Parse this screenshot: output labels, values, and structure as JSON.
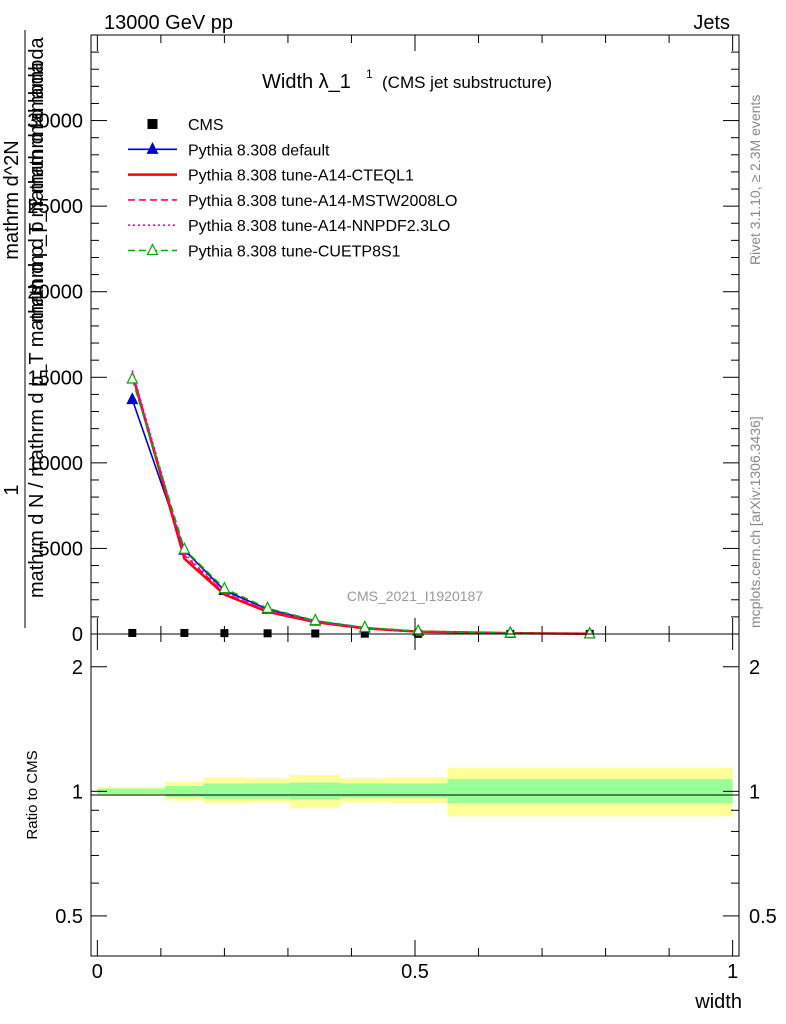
{
  "header": {
    "left": "13000 GeV pp",
    "right": "Jets"
  },
  "side_labels": {
    "rivet": "Rivet 3.1.10, ≥ 2.3M events",
    "mcplots": "mcplots.cern.ch [arXiv:1306.3436]"
  },
  "watermark": "CMS_2021_I1920187",
  "chart_data": [
    {
      "type": "line",
      "title": "Width λ_1",
      "title_sup": "1",
      "subtitle": "(CMS jet substructure)",
      "ylabel_numerator": "1",
      "ylabel_denominator": "mathrm d N / mathrm d p_T mathrm d p_T mathrm d lambda",
      "ylabel_top": "mathrm d^2N",
      "ylabel_top_frac": "mathrm d p_T mathrm d lambda",
      "xlabel": "width",
      "xlim": [
        -0.01,
        1.01
      ],
      "ylim": [
        0,
        35000
      ],
      "yticks": [
        0,
        5000,
        10000,
        15000,
        20000,
        25000,
        30000
      ],
      "ytick_labels": [
        "0",
        "5000",
        "10000",
        "15000",
        "20000",
        "25000",
        "30000"
      ],
      "x": [
        0.055,
        0.137,
        0.2,
        0.268,
        0.343,
        0.421,
        0.505,
        0.65,
        0.775
      ],
      "series": [
        {
          "name": "CMS",
          "style": "data",
          "color": "#000000",
          "values": [
            60,
            60,
            50,
            40,
            30,
            20,
            10,
            5,
            5
          ]
        },
        {
          "name": "Pythia 8.308 default",
          "style": "solid-triangle",
          "color": "#0000cc",
          "values": [
            13700,
            4900,
            2550,
            1450,
            760,
            360,
            150,
            50,
            10
          ]
        },
        {
          "name": "Pythia 8.308 tune-A14-CTEQL1",
          "style": "solid",
          "color": "#ff0000",
          "values": [
            15200,
            4400,
            2300,
            1300,
            690,
            330,
            140,
            50,
            10
          ]
        },
        {
          "name": "Pythia 8.308 tune-A14-MSTW2008LO",
          "style": "dashed",
          "color": "#ff0077",
          "values": [
            15300,
            4600,
            2400,
            1350,
            700,
            340,
            145,
            50,
            10
          ]
        },
        {
          "name": "Pythia 8.308 tune-A14-NNPDF2.3LO",
          "style": "dotted",
          "color": "#ff00cc",
          "values": [
            15400,
            4700,
            2450,
            1380,
            720,
            345,
            148,
            50,
            10
          ]
        },
        {
          "name": "Pythia 8.308 tune-CUETP8S1",
          "style": "dashed-open-triangle",
          "color": "#00aa00",
          "values": [
            14900,
            4950,
            2650,
            1500,
            780,
            380,
            160,
            55,
            12
          ]
        }
      ]
    },
    {
      "type": "area",
      "ylabel": "Ratio to CMS",
      "xlabel": "width",
      "xlim": [
        -0.01,
        1.01
      ],
      "ylim": [
        0.4,
        2.4
      ],
      "yticks": [
        0.5,
        1,
        2
      ],
      "ytick_labels": [
        "0.5",
        "1",
        "2"
      ],
      "xticks": [
        0,
        0.5,
        1
      ],
      "xtick_labels": [
        "0",
        "0.5",
        "1"
      ],
      "bins": [
        {
          "lo": 0.0,
          "hi": 0.107,
          "stat": [
            0.985,
            1.015
          ],
          "total": [
            0.975,
            1.025
          ]
        },
        {
          "lo": 0.107,
          "hi": 0.167,
          "stat": [
            0.97,
            1.03
          ],
          "total": [
            0.95,
            1.055
          ]
        },
        {
          "lo": 0.167,
          "hi": 0.234,
          "stat": [
            0.96,
            1.045
          ],
          "total": [
            0.935,
            1.08
          ]
        },
        {
          "lo": 0.234,
          "hi": 0.303,
          "stat": [
            0.96,
            1.045
          ],
          "total": [
            0.94,
            1.075
          ]
        },
        {
          "lo": 0.303,
          "hi": 0.382,
          "stat": [
            0.955,
            1.05
          ],
          "total": [
            0.91,
            1.095
          ]
        },
        {
          "lo": 0.382,
          "hi": 0.459,
          "stat": [
            0.965,
            1.045
          ],
          "total": [
            0.94,
            1.075
          ]
        },
        {
          "lo": 0.459,
          "hi": 0.551,
          "stat": [
            0.965,
            1.045
          ],
          "total": [
            0.935,
            1.08
          ]
        },
        {
          "lo": 0.551,
          "hi": 1.0,
          "stat": [
            0.935,
            1.07
          ],
          "total": [
            0.87,
            1.14
          ]
        }
      ],
      "colors": {
        "stat": "#99ff99",
        "total": "#ffff99"
      }
    }
  ]
}
